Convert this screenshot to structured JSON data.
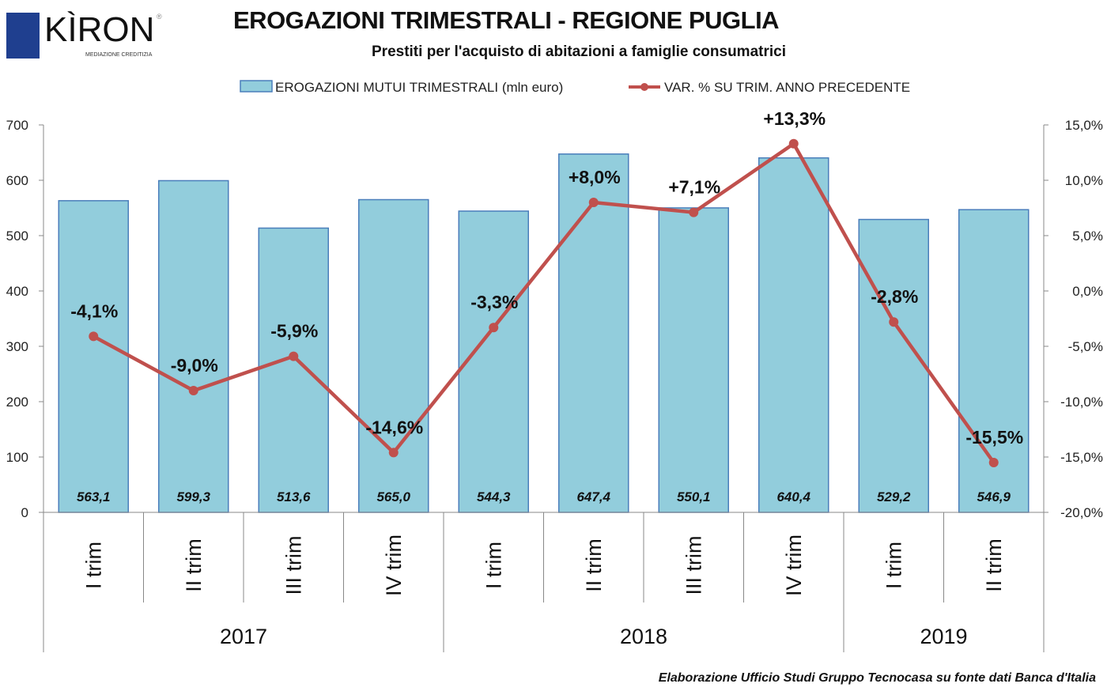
{
  "logo": {
    "name": "KÌRON",
    "tagline": "MEDIAZIONE CREDITIZIA",
    "registered": "®"
  },
  "source": "Elaborazione  Ufficio Studi Gruppo Tecnocasa su fonte dati Banca d'Italia",
  "chart_data": {
    "type": "bar",
    "title": "EROGAZIONI TRIMESTRALI - REGIONE PUGLIA",
    "subtitle": "Prestiti per l'acquisto di abitazioni  a famiglie consumatrici",
    "categories": [
      "I trim",
      "II trim",
      "III trim",
      "IV trim",
      "I trim",
      "II trim",
      "III trim",
      "IV trim",
      "I trim",
      "II trim"
    ],
    "groups": [
      {
        "label": "2017",
        "count": 4
      },
      {
        "label": "2018",
        "count": 4
      },
      {
        "label": "2019",
        "count": 2
      }
    ],
    "series": [
      {
        "name": "EROGAZIONI MUTUI TRIMESTRALI (mln euro)",
        "type": "bar",
        "axis": "left",
        "color": "#92cddc",
        "values": [
          563.1,
          599.3,
          513.6,
          565.0,
          544.3,
          647.4,
          550.1,
          640.4,
          529.2,
          546.9
        ],
        "labels": [
          "563,1",
          "599,3",
          "513,6",
          "565,0",
          "544,3",
          "647,4",
          "550,1",
          "640,4",
          "529,2",
          "546,9"
        ]
      },
      {
        "name": "VAR. % SU TRIM. ANNO PRECEDENTE",
        "type": "line",
        "axis": "right",
        "color": "#c0504d",
        "values": [
          -4.1,
          -9.0,
          -5.9,
          -14.6,
          -3.3,
          8.0,
          7.1,
          13.3,
          -2.8,
          -15.5
        ],
        "labels": [
          "-4,1%",
          "-9,0%",
          "-5,9%",
          "-14,6%",
          "-3,3%",
          "+8,0%",
          "+7,1%",
          "+13,3%",
          "-2,8%",
          "-15,5%"
        ]
      }
    ],
    "ylim": [
      0,
      700
    ],
    "yticks": [
      0,
      100,
      200,
      300,
      400,
      500,
      600,
      700
    ],
    "y2lim": [
      -20,
      15
    ],
    "y2ticks": [
      15,
      10,
      5,
      0,
      -5,
      -10,
      -15,
      -20
    ],
    "y2tick_labels": [
      "15,0%",
      "10,0%",
      "5,0%",
      "0,0%",
      "-5,0%",
      "-10,0%",
      "-15,0%",
      "-20,0%"
    ],
    "legend": "top",
    "grid": false
  }
}
